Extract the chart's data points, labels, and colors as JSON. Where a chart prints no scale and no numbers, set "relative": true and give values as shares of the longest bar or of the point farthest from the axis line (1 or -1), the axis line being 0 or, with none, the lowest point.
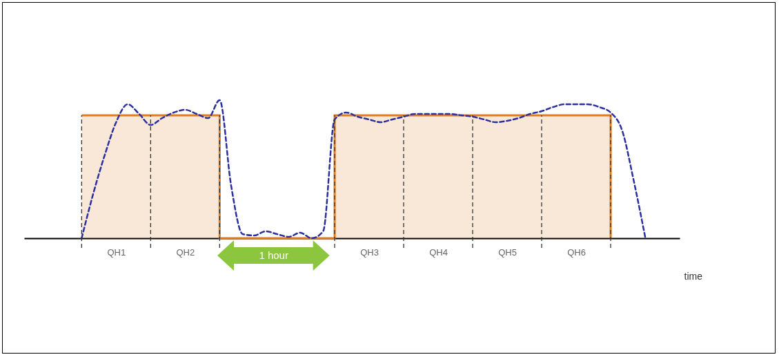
{
  "chart_data": {
    "type": "line",
    "relative": true,
    "xlabel": "time",
    "grid": "x",
    "categories": [
      null,
      null,
      null,
      null,
      null,
      null,
      null,
      null,
      "QH1",
      null,
      null,
      null,
      null,
      null,
      "QH2",
      null,
      null,
      null,
      null,
      null,
      null,
      null,
      null,
      null,
      null,
      null,
      null,
      null,
      null,
      null,
      "QH3",
      null,
      null,
      null,
      null,
      null,
      "QH4",
      null,
      null,
      null,
      null,
      null,
      "QH5",
      null,
      null,
      null,
      null,
      null,
      "QH6",
      null,
      null,
      null,
      null,
      null,
      null,
      null,
      null,
      null
    ],
    "series": [
      {
        "type": "step",
        "color": "#e07b20",
        "values": [
          null,
          null,
          null,
          null,
          null,
          0.89,
          0.89,
          0.89,
          0.89,
          0.89,
          0.89,
          0.89,
          0.89,
          0.89,
          0.89,
          0.89,
          0.89,
          0,
          0,
          0,
          0,
          0,
          0,
          0,
          0,
          0,
          0,
          0.89,
          0.89,
          0.89,
          0.89,
          0.89,
          0.89,
          0.89,
          0.89,
          0.89,
          0.89,
          0.89,
          0.89,
          0.89,
          0.89,
          0.89,
          0.89,
          0.89,
          0.89,
          0.89,
          0.89,
          0.89,
          0.89,
          0.89,
          0.89,
          0,
          null,
          null,
          null,
          null,
          null,
          null
        ]
      },
      {
        "type": "line",
        "color": "#2b2fa0",
        "line_style": "dashed",
        "values": [
          null,
          null,
          null,
          null,
          null,
          0,
          0.32,
          0.6,
          0.84,
          0.97,
          0.9,
          0.82,
          0.87,
          0.91,
          0.93,
          0.9,
          0.87,
          1.0,
          0.38,
          0.03,
          0.02,
          0.05,
          0.03,
          0.01,
          0.04,
          0,
          0.05,
          0.86,
          0.91,
          0.88,
          0.86,
          0.84,
          0.86,
          0.88,
          0.9,
          0.9,
          0.9,
          0.9,
          0.89,
          0.88,
          0.86,
          0.84,
          0.85,
          0.87,
          0.9,
          0.92,
          0.95,
          0.97,
          0.97,
          0.97,
          0.95,
          0.91,
          0.78,
          0.42,
          0.01,
          null,
          null,
          null
        ]
      }
    ],
    "annotations": [
      "1 hour"
    ]
  }
}
